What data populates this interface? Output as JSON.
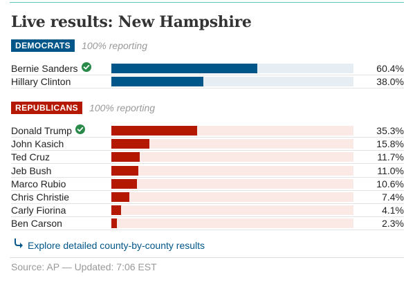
{
  "title": "Live results: New Hampshire",
  "colors": {
    "democrat": "#005689",
    "democrat_track": "#e6eef4",
    "republican": "#b51800",
    "republican_track": "#fbe9e6",
    "check": "#2a8a4a",
    "link": "#005689"
  },
  "sections": [
    {
      "party": "DEMOCRATS",
      "reporting": "100% reporting",
      "color_key": "democrat",
      "candidates": [
        {
          "name": "Bernie Sanders",
          "value": 60.4,
          "label": "60.4%",
          "winner": true
        },
        {
          "name": "Hillary Clinton",
          "value": 38.0,
          "label": "38.0%",
          "winner": false
        }
      ]
    },
    {
      "party": "REPUBLICANS",
      "reporting": "100% reporting",
      "color_key": "republican",
      "candidates": [
        {
          "name": "Donald Trump",
          "value": 35.3,
          "label": "35.3%",
          "winner": true
        },
        {
          "name": "John Kasich",
          "value": 15.8,
          "label": "15.8%",
          "winner": false
        },
        {
          "name": "Ted Cruz",
          "value": 11.7,
          "label": "11.7%",
          "winner": false
        },
        {
          "name": "Jeb Bush",
          "value": 11.0,
          "label": "11.0%",
          "winner": false
        },
        {
          "name": "Marco Rubio",
          "value": 10.6,
          "label": "10.6%",
          "winner": false
        },
        {
          "name": "Chris Christie",
          "value": 7.4,
          "label": "7.4%",
          "winner": false
        },
        {
          "name": "Carly Fiorina",
          "value": 4.1,
          "label": "4.1%",
          "winner": false
        },
        {
          "name": "Ben Carson",
          "value": 2.3,
          "label": "2.3%",
          "winner": false
        }
      ]
    }
  ],
  "explore_link": {
    "label": "Explore detailed county-by-county results",
    "icon": "arrow-down-right-icon"
  },
  "source": "Source: AP — Updated: 7:06 EST",
  "chart_data": {
    "type": "bar",
    "title": "Live results: New Hampshire",
    "xlim": [
      0,
      100
    ],
    "series": [
      {
        "name": "DEMOCRATS",
        "categories": [
          "Bernie Sanders",
          "Hillary Clinton"
        ],
        "values": [
          60.4,
          38.0
        ]
      },
      {
        "name": "REPUBLICANS",
        "categories": [
          "Donald Trump",
          "John Kasich",
          "Ted Cruz",
          "Jeb Bush",
          "Marco Rubio",
          "Chris Christie",
          "Carly Fiorina",
          "Ben Carson"
        ],
        "values": [
          35.3,
          15.8,
          11.7,
          11.0,
          10.6,
          7.4,
          4.1,
          2.3
        ]
      }
    ]
  }
}
